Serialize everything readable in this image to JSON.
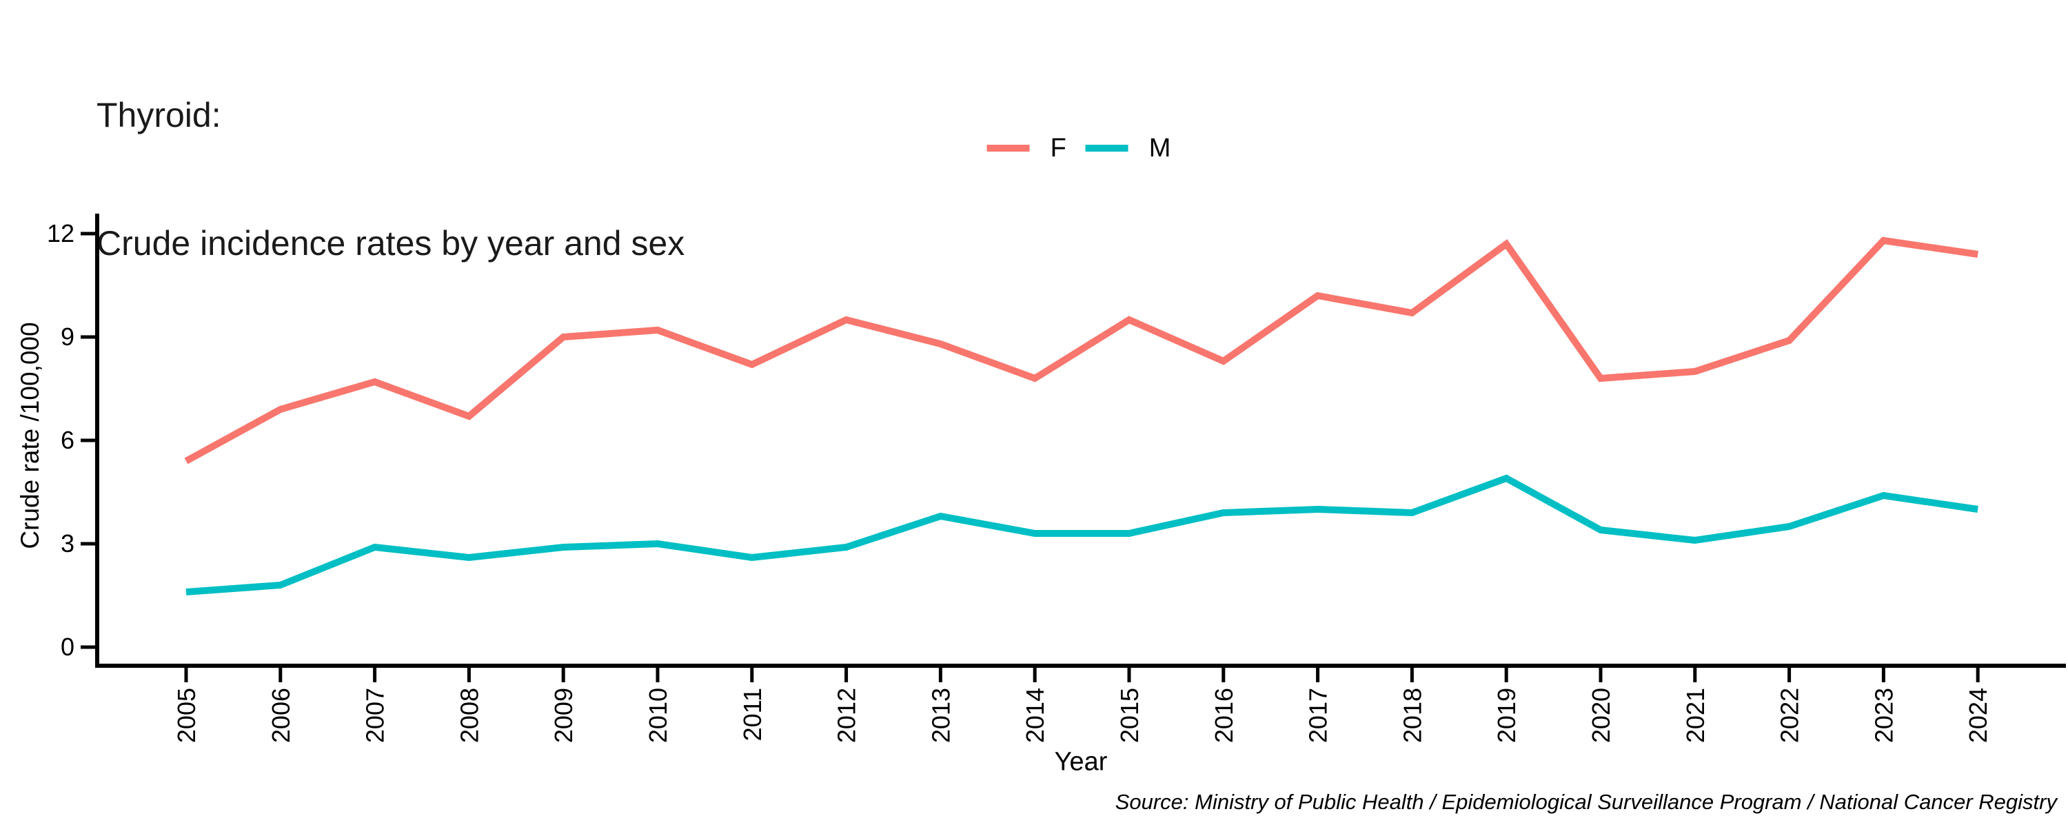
{
  "title": {
    "line1": "Thyroid:",
    "line2": "Crude incidence rates by year and sex"
  },
  "legend": {
    "items": [
      {
        "label": "F",
        "color": "#F8766D"
      },
      {
        "label": "M",
        "color": "#00BFC4"
      }
    ]
  },
  "source_note": "Source: Ministry of Public Health / Epidemiological Surveillance Program / National Cancer Registry",
  "chart_data": {
    "type": "line",
    "title": "Thyroid: Crude incidence rates by year and sex",
    "xlabel": "Year",
    "ylabel": "Crude rate /100,000",
    "x": [
      2005,
      2006,
      2007,
      2008,
      2009,
      2010,
      2011,
      2012,
      2013,
      2014,
      2015,
      2016,
      2017,
      2018,
      2019,
      2020,
      2021,
      2022,
      2023,
      2024
    ],
    "series": [
      {
        "name": "F",
        "color": "#F8766D",
        "values": [
          5.4,
          6.9,
          7.7,
          6.7,
          9.0,
          9.2,
          8.2,
          9.5,
          8.8,
          7.8,
          9.5,
          8.3,
          10.2,
          9.7,
          11.7,
          7.8,
          8.0,
          8.9,
          11.8,
          11.4
        ]
      },
      {
        "name": "M",
        "color": "#00BFC4",
        "values": [
          1.6,
          1.8,
          2.9,
          2.6,
          2.9,
          3.0,
          2.6,
          2.9,
          3.8,
          3.3,
          3.3,
          3.9,
          4.0,
          3.9,
          4.9,
          3.4,
          3.1,
          3.5,
          4.4,
          4.0
        ]
      }
    ],
    "yticks": [
      0,
      3,
      6,
      9,
      12
    ],
    "ylim": [
      0,
      12
    ],
    "grid": "off",
    "legend_position": "top-center"
  }
}
